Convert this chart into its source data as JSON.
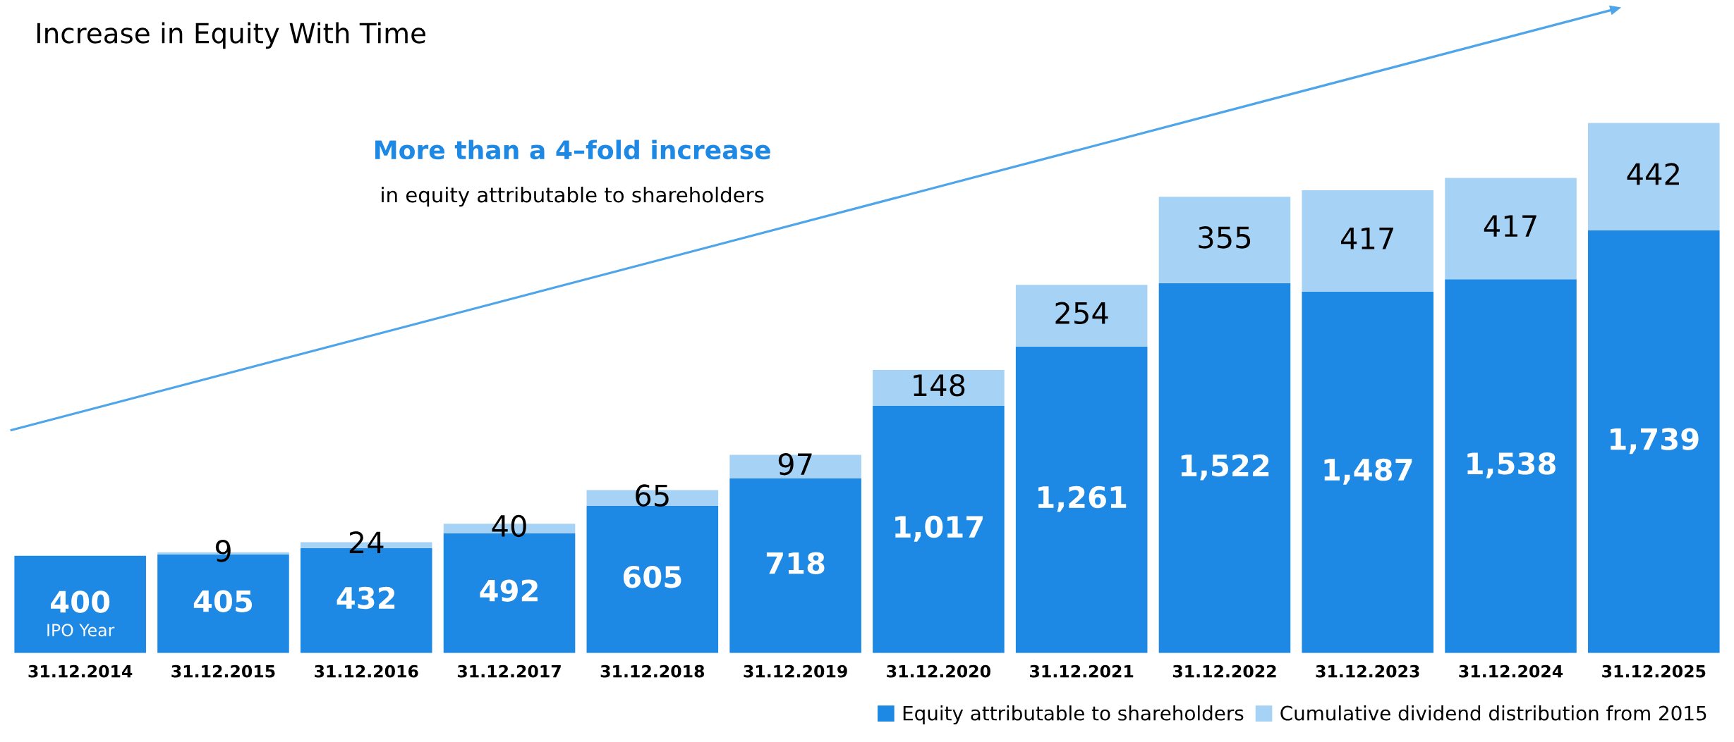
{
  "chart_data": {
    "type": "bar",
    "title": "Increase in Equity With Time",
    "categories": [
      "31.12.2014",
      "31.12.2015",
      "31.12.2016",
      "31.12.2017",
      "31.12.2018",
      "31.12.2019",
      "31.12.2020",
      "31.12.2021",
      "31.12.2022",
      "31.12.2023",
      "31.12.2024",
      "31.12.2025"
    ],
    "stacked": true,
    "series": [
      {
        "name": "Equity attributable to shareholders",
        "color": "#1e88e5",
        "values": [
          400,
          405,
          432,
          492,
          605,
          718,
          1017,
          1261,
          1522,
          1487,
          1538,
          1739
        ],
        "value_labels": [
          "400",
          "405",
          "432",
          "492",
          "605",
          "718",
          "1,017",
          "1,261",
          "1,522",
          "1,487",
          "1,538",
          "1,739"
        ]
      },
      {
        "name": "Cumulative dividend distribution from 2015",
        "color": "#a6d2f5",
        "values": [
          null,
          9,
          24,
          40,
          65,
          97,
          148,
          254,
          355,
          417,
          417,
          442
        ],
        "value_labels": [
          null,
          "9",
          "24",
          "40",
          "65",
          "97",
          "148",
          "254",
          "355",
          "417",
          "417",
          "442"
        ]
      }
    ],
    "annotations": [
      "IPO Year",
      "More than a 4–fold increase",
      "in equity attributable to shareholders"
    ],
    "legend": "bottom right",
    "grid": false
  }
}
